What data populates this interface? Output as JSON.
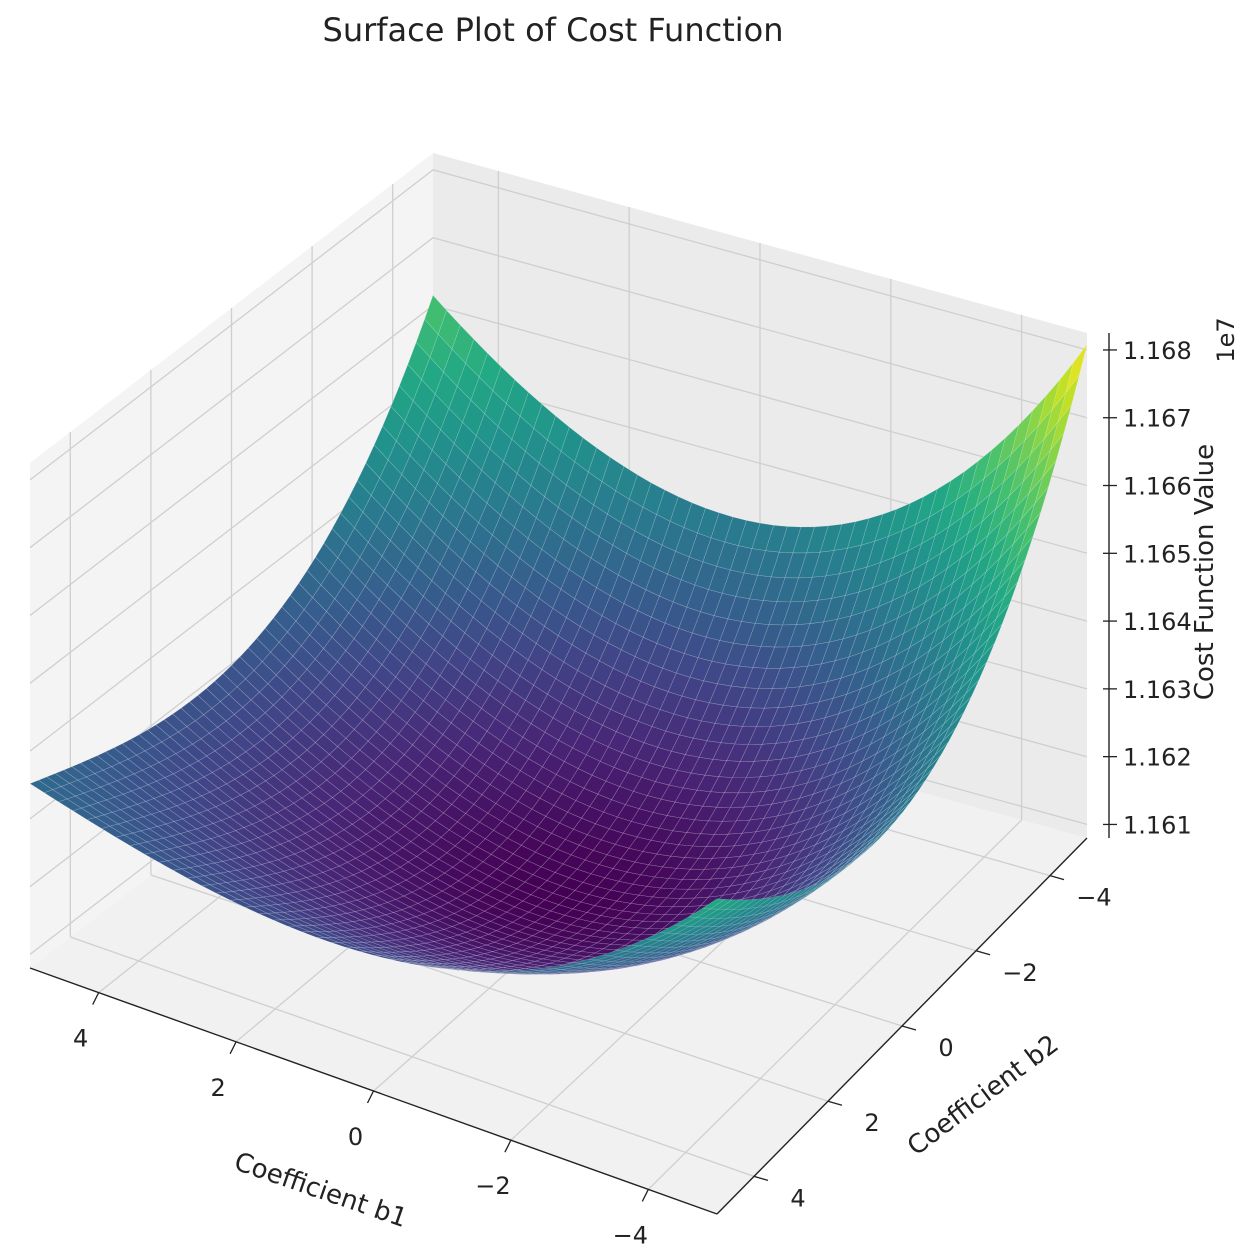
{
  "chart_data": {
    "type": "surface3d",
    "title": "Surface Plot of Cost Function",
    "xlabel": "Coefficient b1",
    "ylabel": "Coefficient b2",
    "zlabel": "Cost Function Value",
    "z_offset_label": "1e7",
    "xlim": [
      -5,
      5
    ],
    "ylim": [
      -5,
      5
    ],
    "zlim": [
      1.1608,
      1.16825
    ],
    "x_ticks": [
      4,
      2,
      0,
      -2,
      -4
    ],
    "x_tick_labels": [
      "4",
      "2",
      "0",
      "−2",
      "−4"
    ],
    "y_ticks": [
      -4,
      -2,
      0,
      2,
      4
    ],
    "y_tick_labels": [
      "−4",
      "−2",
      "0",
      "2",
      "4"
    ],
    "z_ticks": [
      1.161,
      1.162,
      1.163,
      1.164,
      1.165,
      1.166,
      1.167,
      1.168
    ],
    "z_tick_labels": [
      "1.161",
      "1.162",
      "1.163",
      "1.164",
      "1.165",
      "1.166",
      "1.167",
      "1.168"
    ],
    "surface": {
      "function": "quadratic bowl",
      "z_min": 1.16112,
      "z_at_corner_b1_-5_b2_-5": 1.16808,
      "z_at_corner_b1_5_b2_5": 1.16352,
      "z_at_corner_b1_5_b2_-5": 1.16615,
      "z_at_corner_b1_-5_b2_5": 1.16545,
      "colormap": "viridis"
    },
    "grid": true
  }
}
